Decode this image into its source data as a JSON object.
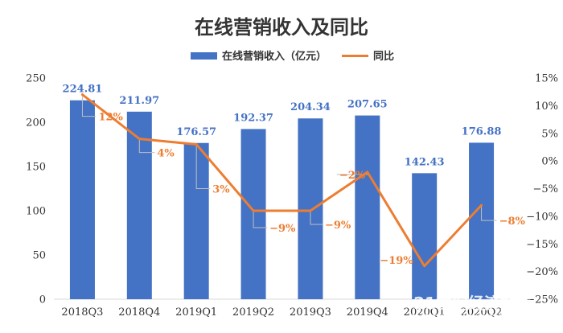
{
  "chart_data": {
    "type": "bar",
    "title": "在线营销收入及同比",
    "categories": [
      "2018Q3",
      "2018Q4",
      "2019Q1",
      "2019Q2",
      "2019Q3",
      "2019Q4",
      "2020Q1",
      "2020Q2"
    ],
    "series": [
      {
        "name": "在线营销收入（亿元）",
        "type": "bar",
        "axis": "left",
        "values": [
          224.81,
          211.97,
          176.57,
          192.37,
          204.34,
          207.65,
          142.43,
          176.88
        ],
        "labels": [
          "224.81",
          "211.97",
          "176.57",
          "192.37",
          "204.34",
          "207.65",
          "142.43",
          "176.88"
        ]
      },
      {
        "name": "同比",
        "type": "line",
        "axis": "right",
        "values": [
          12,
          4,
          3,
          -9,
          -9,
          -2,
          -19,
          -8
        ],
        "labels": [
          "12%",
          "4%",
          "3%",
          "−9%",
          "−9%",
          "−2%",
          "−19%",
          "−8%"
        ]
      }
    ],
    "y_left": {
      "ylim": [
        0,
        250
      ],
      "ticks": [
        "0",
        "50",
        "100",
        "150",
        "200",
        "250"
      ]
    },
    "y_right": {
      "ylim": [
        -25,
        15
      ],
      "ticks": [
        "−25%",
        "−20%",
        "−15%",
        "−10%",
        "−5%",
        "0%",
        "5%",
        "10%",
        "15%"
      ]
    },
    "grid": false,
    "legend_position": "top-center"
  },
  "colors": {
    "bar": "#4472c4",
    "bar_label": "#4472c4",
    "line": "#ed7d31",
    "line_label": "#ed7d31",
    "axis": "#d9d9d9",
    "leader": "#bfbfbf"
  },
  "watermark": {
    "text": "21世纪经济报道",
    "subtext": "21ST CENTURY BUSINESS HERALD"
  }
}
